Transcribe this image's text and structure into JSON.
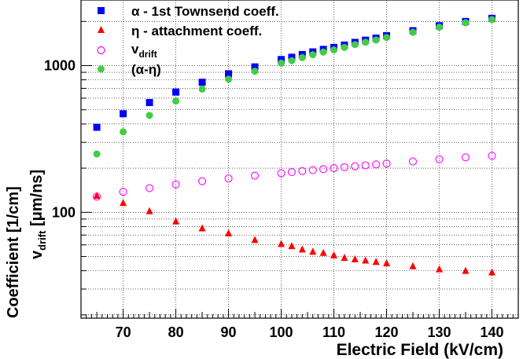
{
  "chart_data": {
    "type": "scatter",
    "xlabel": "Electric Field (kV/cm)",
    "ylabel_line1": "Coefficient [1/cm]",
    "ylabel_line2_main": "v",
    "ylabel_line2_sub": "drift",
    "ylabel_line2_rest": " [μm/ns]",
    "xlim": [
      62,
      145
    ],
    "ylim": [
      19,
      2800
    ],
    "yscale": "log",
    "x_ticks": [
      70,
      80,
      90,
      100,
      110,
      120,
      130,
      140
    ],
    "x_tick_labels": [
      "70",
      "80",
      "90",
      "100",
      "110",
      "120",
      "130",
      "140"
    ],
    "y_tick_labels": [
      {
        "value": 100,
        "label": "100"
      },
      {
        "value": 1000,
        "label": "1000"
      }
    ],
    "grid": true,
    "legend_position": "top-left",
    "series": [
      {
        "key": "alpha",
        "name": "α - 1st Townsend coeff.",
        "color": "#0000ff",
        "marker": "square",
        "x": [
          65,
          70,
          75,
          80,
          85,
          90,
          95,
          100,
          102,
          104,
          106,
          108,
          110,
          112,
          114,
          116,
          118,
          120,
          125,
          130,
          135,
          140
        ],
        "y": [
          380,
          470,
          560,
          660,
          770,
          880,
          980,
          1100,
          1140,
          1190,
          1240,
          1290,
          1330,
          1380,
          1440,
          1490,
          1540,
          1600,
          1730,
          1870,
          2000,
          2100
        ]
      },
      {
        "key": "eta",
        "name": "η - attachment coeff.",
        "color": "#ff0000",
        "marker": "triangle",
        "x": [
          65,
          70,
          75,
          80,
          85,
          90,
          95,
          100,
          102,
          104,
          106,
          108,
          110,
          112,
          114,
          116,
          118,
          120,
          125,
          130,
          135,
          140
        ],
        "y": [
          130,
          116,
          102,
          87,
          78,
          72,
          65,
          61,
          59,
          56,
          54,
          53,
          51,
          49,
          48,
          47,
          46,
          45,
          43,
          41,
          40,
          39
        ]
      },
      {
        "key": "vdrift",
        "name": "v",
        "name_sub": "drift",
        "color": "#ff00ff",
        "marker": "open-circle",
        "x": [
          65,
          70,
          75,
          80,
          85,
          90,
          95,
          100,
          102,
          104,
          106,
          108,
          110,
          112,
          114,
          116,
          118,
          120,
          125,
          130,
          135,
          140
        ],
        "y": [
          128,
          138,
          146,
          155,
          163,
          170,
          178,
          185,
          188,
          191,
          194,
          197,
          200,
          203,
          206,
          209,
          212,
          215,
          222,
          230,
          237,
          243
        ]
      },
      {
        "key": "diff",
        "name": "(α-η)",
        "color": "#44cc44",
        "marker": "circle",
        "x": [
          65,
          70,
          75,
          80,
          85,
          90,
          95,
          100,
          102,
          104,
          106,
          108,
          110,
          112,
          114,
          116,
          118,
          120,
          125,
          130,
          135,
          140
        ],
        "y": [
          250,
          354,
          458,
          573,
          692,
          808,
          915,
          1039,
          1081,
          1134,
          1186,
          1237,
          1279,
          1331,
          1392,
          1443,
          1494,
          1555,
          1687,
          1829,
          1960,
          2061
        ]
      }
    ]
  }
}
